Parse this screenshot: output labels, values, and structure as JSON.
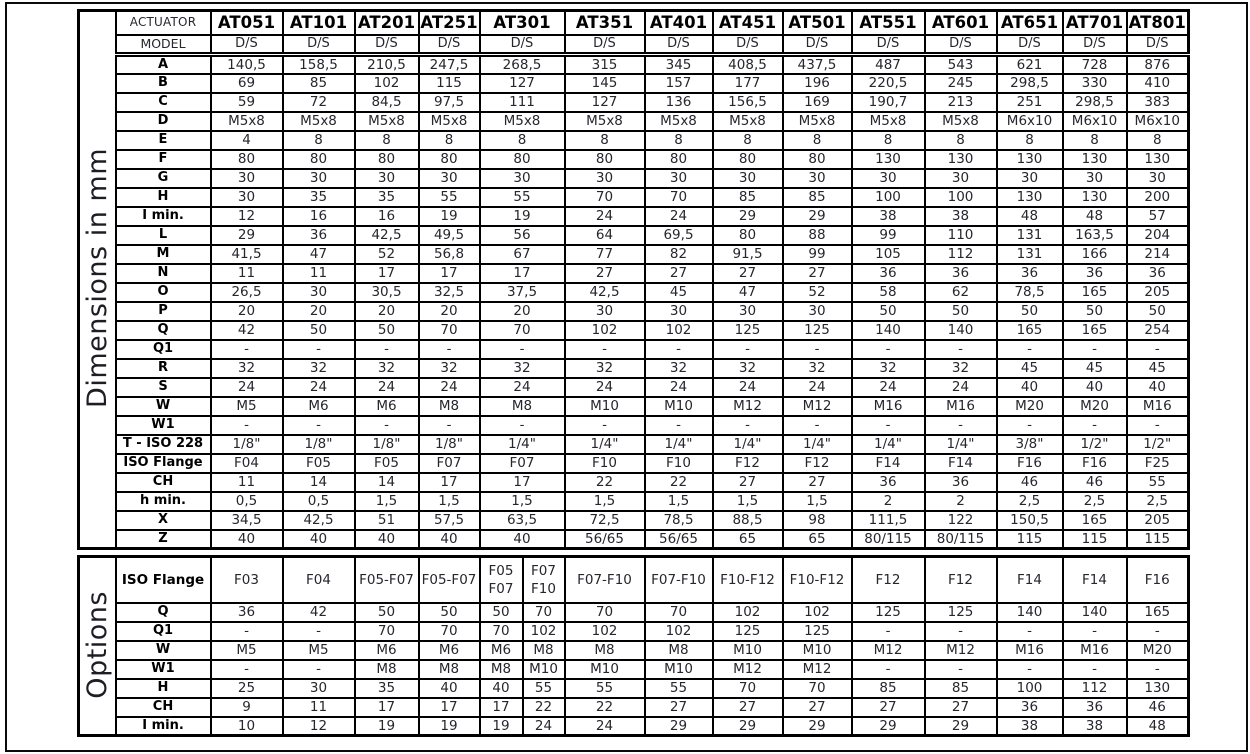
{
  "side_labels": {
    "dimensions": "Dimensions in mm",
    "options": "Options"
  },
  "actuators": [
    "AT051",
    "AT101",
    "AT201",
    "AT251",
    "AT301",
    "AT351",
    "AT401",
    "AT451",
    "AT501",
    "AT551",
    "AT601",
    "AT651",
    "AT701",
    "AT801"
  ],
  "dimensions": {
    "actuator_label": "ACTUATOR",
    "model_label": "MODEL",
    "model_values": [
      "D/S",
      "D/S",
      "D/S",
      "D/S",
      "D/S",
      "D/S",
      "D/S",
      "D/S",
      "D/S",
      "D/S",
      "D/S",
      "D/S",
      "D/S",
      "D/S"
    ],
    "rows": [
      {
        "label": "A",
        "values": [
          "140,5",
          "158,5",
          "210,5",
          "247,5",
          "268,5",
          "315",
          "345",
          "408,5",
          "437,5",
          "487",
          "543",
          "621",
          "728",
          "876"
        ]
      },
      {
        "label": "B",
        "values": [
          "69",
          "85",
          "102",
          "115",
          "127",
          "145",
          "157",
          "177",
          "196",
          "220,5",
          "245",
          "298,5",
          "330",
          "410"
        ]
      },
      {
        "label": "C",
        "values": [
          "59",
          "72",
          "84,5",
          "97,5",
          "111",
          "127",
          "136",
          "156,5",
          "169",
          "190,7",
          "213",
          "251",
          "298,5",
          "383"
        ]
      },
      {
        "label": "D",
        "values": [
          "M5x8",
          "M5x8",
          "M5x8",
          "M5x8",
          "M5x8",
          "M5x8",
          "M5x8",
          "M5x8",
          "M5x8",
          "M5x8",
          "M5x8",
          "M6x10",
          "M6x10",
          "M6x10"
        ]
      },
      {
        "label": "E",
        "values": [
          "4",
          "8",
          "8",
          "8",
          "8",
          "8",
          "8",
          "8",
          "8",
          "8",
          "8",
          "8",
          "8",
          "8"
        ]
      },
      {
        "label": "F",
        "values": [
          "80",
          "80",
          "80",
          "80",
          "80",
          "80",
          "80",
          "80",
          "80",
          "130",
          "130",
          "130",
          "130",
          "130"
        ]
      },
      {
        "label": "G",
        "values": [
          "30",
          "30",
          "30",
          "30",
          "30",
          "30",
          "30",
          "30",
          "30",
          "30",
          "30",
          "30",
          "30",
          "30"
        ]
      },
      {
        "label": "H",
        "values": [
          "30",
          "35",
          "35",
          "55",
          "55",
          "70",
          "70",
          "85",
          "85",
          "100",
          "100",
          "130",
          "130",
          "200"
        ]
      },
      {
        "label": "I min.",
        "values": [
          "12",
          "16",
          "16",
          "19",
          "19",
          "24",
          "24",
          "29",
          "29",
          "38",
          "38",
          "48",
          "48",
          "57"
        ]
      },
      {
        "label": "L",
        "values": [
          "29",
          "36",
          "42,5",
          "49,5",
          "56",
          "64",
          "69,5",
          "80",
          "88",
          "99",
          "110",
          "131",
          "163,5",
          "204"
        ]
      },
      {
        "label": "M",
        "values": [
          "41,5",
          "47",
          "52",
          "56,8",
          "67",
          "77",
          "82",
          "91,5",
          "99",
          "105",
          "112",
          "131",
          "166",
          "214"
        ]
      },
      {
        "label": "N",
        "values": [
          "11",
          "11",
          "17",
          "17",
          "17",
          "27",
          "27",
          "27",
          "27",
          "36",
          "36",
          "36",
          "36",
          "36"
        ]
      },
      {
        "label": "O",
        "values": [
          "26,5",
          "30",
          "30,5",
          "32,5",
          "37,5",
          "42,5",
          "45",
          "47",
          "52",
          "58",
          "62",
          "78,5",
          "165",
          "205"
        ]
      },
      {
        "label": "P",
        "values": [
          "20",
          "20",
          "20",
          "20",
          "20",
          "30",
          "30",
          "30",
          "30",
          "50",
          "50",
          "50",
          "50",
          "50"
        ]
      },
      {
        "label": "Q",
        "values": [
          "42",
          "50",
          "50",
          "70",
          "70",
          "102",
          "102",
          "125",
          "125",
          "140",
          "140",
          "165",
          "165",
          "254"
        ]
      },
      {
        "label": "Q1",
        "values": [
          "-",
          "-",
          "-",
          "-",
          "-",
          "-",
          "-",
          "-",
          "-",
          "-",
          "-",
          "-",
          "-",
          "-"
        ]
      },
      {
        "label": "R",
        "values": [
          "32",
          "32",
          "32",
          "32",
          "32",
          "32",
          "32",
          "32",
          "32",
          "32",
          "32",
          "45",
          "45",
          "45"
        ]
      },
      {
        "label": "S",
        "values": [
          "24",
          "24",
          "24",
          "24",
          "24",
          "24",
          "24",
          "24",
          "24",
          "24",
          "24",
          "40",
          "40",
          "40"
        ]
      },
      {
        "label": "W",
        "values": [
          "M5",
          "M6",
          "M6",
          "M8",
          "M8",
          "M10",
          "M10",
          "M12",
          "M12",
          "M16",
          "M16",
          "M20",
          "M20",
          "M16"
        ]
      },
      {
        "label": "W1",
        "values": [
          "-",
          "-",
          "-",
          "-",
          "-",
          "-",
          "-",
          "-",
          "-",
          "-",
          "-",
          "-",
          "-",
          "-"
        ]
      },
      {
        "label": "T - ISO 228",
        "values": [
          "1/8\"",
          "1/8\"",
          "1/8\"",
          "1/8\"",
          "1/4\"",
          "1/4\"",
          "1/4\"",
          "1/4\"",
          "1/4\"",
          "1/4\"",
          "1/4\"",
          "3/8\"",
          "1/2\"",
          "1/2\""
        ]
      },
      {
        "label": "ISO Flange",
        "values": [
          "F04",
          "F05",
          "F05",
          "F07",
          "F07",
          "F10",
          "F10",
          "F12",
          "F12",
          "F14",
          "F14",
          "F16",
          "F16",
          "F25"
        ]
      },
      {
        "label": "CH",
        "values": [
          "11",
          "14",
          "14",
          "17",
          "17",
          "22",
          "22",
          "27",
          "27",
          "36",
          "36",
          "46",
          "46",
          "55"
        ]
      },
      {
        "label": "h min.",
        "values": [
          "0,5",
          "0,5",
          "1,5",
          "1,5",
          "1,5",
          "1,5",
          "1,5",
          "1,5",
          "1,5",
          "2",
          "2",
          "2,5",
          "2,5",
          "2,5"
        ]
      },
      {
        "label": "X",
        "values": [
          "34,5",
          "42,5",
          "51",
          "57,5",
          "63,5",
          "72,5",
          "78,5",
          "88,5",
          "98",
          "111,5",
          "122",
          "150,5",
          "165",
          "205"
        ]
      },
      {
        "label": "Z",
        "values": [
          "40",
          "40",
          "40",
          "40",
          "40",
          "56/65",
          "56/65",
          "65",
          "65",
          "80/115",
          "80/115",
          "115",
          "115",
          "115"
        ]
      }
    ]
  },
  "options": {
    "note_split_column": "AT301 column is split into two sub-columns in this section",
    "rows": [
      {
        "label": "ISO Flange",
        "tall": true,
        "values": [
          "F03",
          "F04",
          "F05-F07",
          "F05-F07",
          "F05\nF07",
          "F07\nF10",
          "F07-F10",
          "F07-F10",
          "F10-F12",
          "F10-F12",
          "F12",
          "F12",
          "F14",
          "F14",
          "F16"
        ]
      },
      {
        "label": "Q",
        "values": [
          "36",
          "42",
          "50",
          "50",
          "50",
          "70",
          "70",
          "70",
          "102",
          "102",
          "125",
          "125",
          "140",
          "140",
          "165"
        ]
      },
      {
        "label": "Q1",
        "values": [
          "-",
          "-",
          "70",
          "70",
          "70",
          "102",
          "102",
          "102",
          "125",
          "125",
          "-",
          "-",
          "-",
          "-",
          "-"
        ]
      },
      {
        "label": "W",
        "values": [
          "M5",
          "M5",
          "M6",
          "M6",
          "M6",
          "M8",
          "M8",
          "M8",
          "M10",
          "M10",
          "M12",
          "M12",
          "M16",
          "M16",
          "M20"
        ]
      },
      {
        "label": "W1",
        "values": [
          "-",
          "-",
          "M8",
          "M8",
          "M8",
          "M10",
          "M10",
          "M10",
          "M12",
          "M12",
          "-",
          "-",
          "-",
          "-",
          "-"
        ]
      },
      {
        "label": "H",
        "values": [
          "25",
          "30",
          "35",
          "40",
          "40",
          "55",
          "55",
          "55",
          "70",
          "70",
          "85",
          "85",
          "100",
          "112",
          "130"
        ]
      },
      {
        "label": "CH",
        "values": [
          "9",
          "11",
          "17",
          "17",
          "17",
          "22",
          "22",
          "27",
          "27",
          "27",
          "27",
          "27",
          "36",
          "36",
          "46"
        ]
      },
      {
        "label": "I min.",
        "values": [
          "10",
          "12",
          "19",
          "19",
          "19",
          "24",
          "24",
          "29",
          "29",
          "29",
          "29",
          "29",
          "38",
          "38",
          "48"
        ]
      }
    ]
  }
}
